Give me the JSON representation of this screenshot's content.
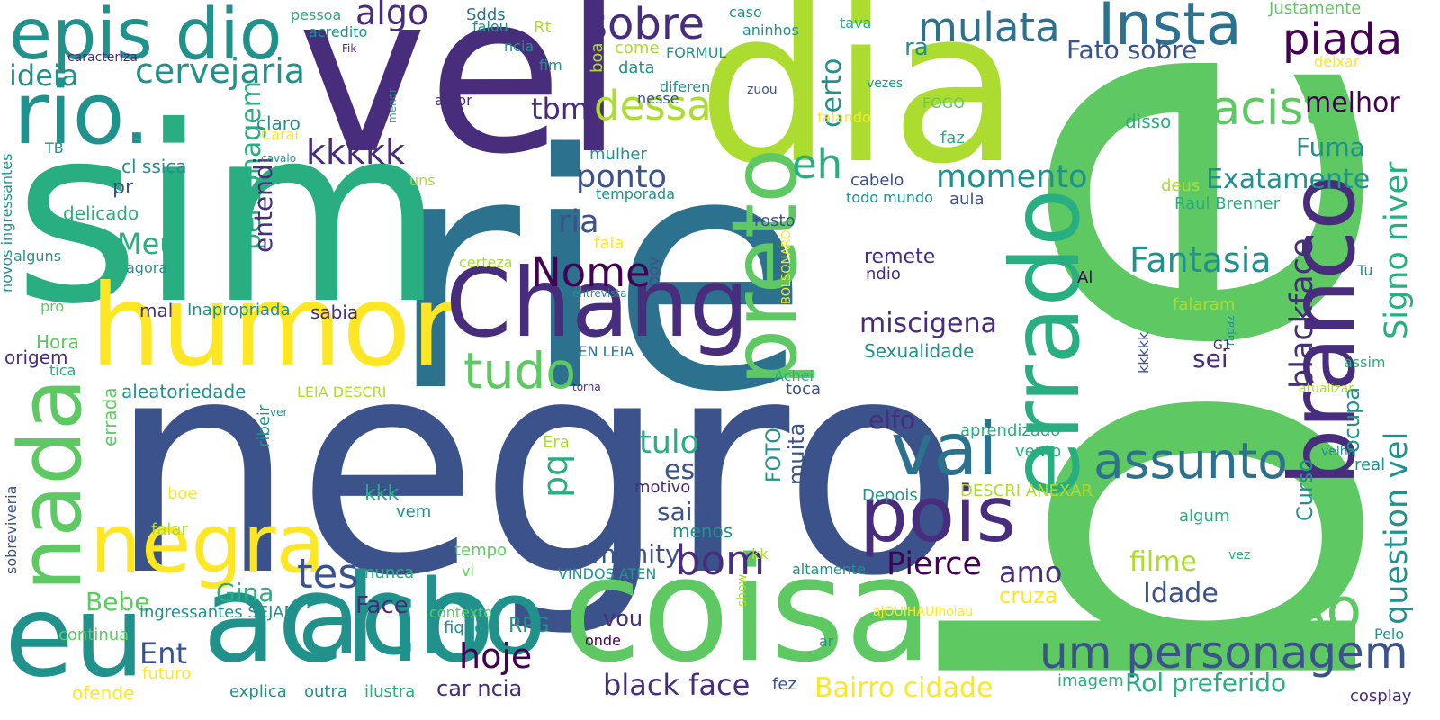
{
  "palette": {
    "purple_dark": "#440154",
    "purple": "#472d7b",
    "indigo": "#3b528b",
    "blue": "#2c728e",
    "teal": "#21918c",
    "green_teal": "#28ae80",
    "green": "#5ec962",
    "lime": "#addc30",
    "yellow": "#fde725"
  },
  "words": [
    "bem",
    "rie",
    "negro",
    "sim",
    "vel",
    "dia",
    "coisa",
    "acho",
    "acho",
    "eu",
    "humor",
    "Chang",
    "preto",
    "errado",
    "branco",
    "rio.",
    "epis dio",
    "negra",
    "nada",
    "pois",
    "vai",
    "Insta",
    "mulata",
    "sobre",
    "racista",
    "piada",
    "assunto",
    "um personagem",
    "Ao",
    "tudo",
    "dessa",
    "tes",
    "bom",
    "cervejaria",
    "Nome",
    "Fantasia",
    "blackface",
    "Signo niver",
    "question vel",
    "Exatamente",
    "momento",
    "miscigena",
    "personagem",
    "Pierce",
    "hoje",
    "black face",
    "Bairro cidade",
    "Rol preferido",
    "kkkkk",
    "eh",
    "algo",
    "ideia",
    "ponto",
    "ria",
    "certo",
    "Fato sobre",
    "melhor",
    "Fuma",
    "tbm",
    "Meu",
    "pq",
    "tulo",
    "est",
    "saiu",
    "elfo",
    "Idade",
    "filme",
    "cruza",
    "amo",
    "comunity",
    "Gina",
    "Bebe",
    "Ent",
    "Face",
    "car ncia",
    "vou",
    "RPG",
    "sei",
    "ra",
    "Curso",
    "ocupa",
    "kkk",
    "Sexualidade",
    "remete",
    "ndio",
    "entendi",
    "pr",
    "cl ssica",
    "delicado",
    "claro",
    "sabia",
    "mal",
    "Inapropriada",
    "aleatoriedade",
    "Hora",
    "origem",
    "Justamente",
    "deixar",
    "disso",
    "deus",
    "Raul Brenner",
    "aula",
    "cabelo",
    "todo mundo",
    "faz",
    "FOGO",
    "vezes",
    "falando",
    "zuou",
    "nesse",
    "amor",
    "diferen",
    "data",
    "come",
    "FORMUL",
    "fim",
    "ncia",
    "falou",
    "Sdds",
    "Rt",
    "acredito",
    "pessoa",
    "caso",
    "aninhos",
    "tava",
    "boa",
    "Fik",
    "caracteriza",
    "menor",
    "TB",
    "alguns",
    "novos ingressantes",
    "agora",
    "pro",
    "tica",
    "Carai",
    "cavalo",
    "uns",
    "temporada",
    "mulher",
    "rosto",
    "BOLSONARO",
    "certeza",
    "entrevista",
    "fala",
    "boy",
    "ATEN LEIA",
    "LEIA DESCRI",
    "torna",
    "toca",
    "Achei",
    "aprendizado",
    "vento",
    "kkkkk",
    "G1",
    "rapaz",
    "assim",
    "atualizar",
    "Al",
    "Tu",
    "falaram",
    "errada",
    "ribeir",
    "ver",
    "Era",
    "boe",
    "vem",
    "motivo",
    "muita",
    "FOTO",
    "Depois",
    "DESCRI ANEXAR",
    "velha",
    "real",
    "algum",
    "vez",
    "menos",
    "kk",
    "altamente",
    "tempo",
    "VINDOS ATEN",
    "nunca",
    "vi",
    "show",
    "falar",
    "sobreviveria",
    "ingressantes SEJAM",
    "continua",
    "contexto",
    "fiquei",
    "onde",
    "ajOUIHAUIhoiau",
    "ar",
    "imagem",
    "cosplay",
    "Pelo",
    "ofende",
    "futuro",
    "explica",
    "outra",
    "ilustra",
    "fez"
  ]
}
